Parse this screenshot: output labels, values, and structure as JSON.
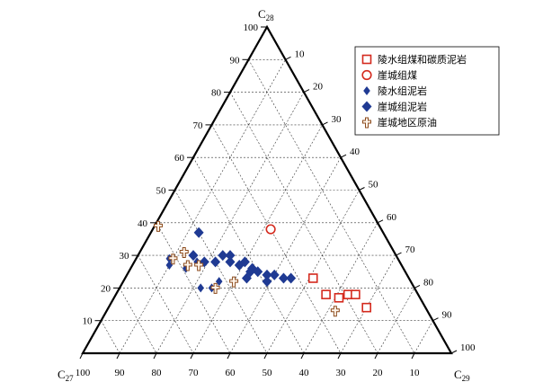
{
  "chart_data": {
    "type": "ternary",
    "corners": {
      "top": {
        "base": "C",
        "sub": "28"
      },
      "left": {
        "base": "C",
        "sub": "27"
      },
      "right": {
        "base": "C",
        "sub": "29"
      }
    },
    "ticks": {
      "c28": [
        10,
        20,
        30,
        40,
        50,
        60,
        70,
        80,
        90,
        100
      ],
      "c29": [
        10,
        20,
        30,
        40,
        50,
        60,
        70,
        80,
        90,
        100
      ],
      "c27": [
        100,
        90,
        80,
        70,
        60,
        50,
        40,
        30,
        20,
        10
      ]
    },
    "grid": true,
    "legend_position": "top-right",
    "series": [
      {
        "name": "陵水组煤和碳质泥岩",
        "marker": "square-open",
        "color": "#d42a1e",
        "points": [
          {
            "c27": 26,
            "c28": 23,
            "c29": 51
          },
          {
            "c27": 25,
            "c28": 18,
            "c29": 57
          },
          {
            "c27": 22,
            "c28": 17,
            "c29": 61
          },
          {
            "c27": 19,
            "c28": 18,
            "c29": 63
          },
          {
            "c27": 17,
            "c28": 18,
            "c29": 65
          },
          {
            "c27": 16,
            "c28": 14,
            "c29": 70
          }
        ]
      },
      {
        "name": "崖城组煤",
        "marker": "circle-open",
        "color": "#d42a1e",
        "points": [
          {
            "c27": 30,
            "c28": 38,
            "c29": 32
          }
        ]
      },
      {
        "name": "陵水组泥岩",
        "marker": "diamond-small",
        "color": "#1f3a93",
        "points": [
          {
            "c27": 63,
            "c28": 27,
            "c29": 10
          },
          {
            "c27": 62,
            "c28": 29,
            "c29": 9
          },
          {
            "c27": 59,
            "c28": 26,
            "c29": 15
          },
          {
            "c27": 58,
            "c28": 20,
            "c29": 22
          },
          {
            "c27": 55,
            "c28": 28,
            "c29": 17
          },
          {
            "c27": 55,
            "c28": 20,
            "c29": 25
          },
          {
            "c27": 52,
            "c28": 22,
            "c29": 26
          }
        ]
      },
      {
        "name": "崖城组泥岩",
        "marker": "diamond",
        "color": "#1f3a93",
        "points": [
          {
            "c27": 50,
            "c28": 37,
            "c29": 13
          },
          {
            "c27": 55,
            "c28": 30,
            "c29": 15
          },
          {
            "c27": 53,
            "c28": 28,
            "c29": 19
          },
          {
            "c27": 50,
            "c28": 28,
            "c29": 22
          },
          {
            "c27": 47,
            "c28": 30,
            "c29": 23
          },
          {
            "c27": 46,
            "c28": 28,
            "c29": 26
          },
          {
            "c27": 45,
            "c28": 30,
            "c29": 25
          },
          {
            "c27": 44,
            "c28": 27,
            "c29": 29
          },
          {
            "c27": 44,
            "c28": 23,
            "c29": 33
          },
          {
            "c27": 42,
            "c28": 28,
            "c29": 30
          },
          {
            "c27": 41,
            "c28": 26,
            "c29": 33
          },
          {
            "c27": 40,
            "c28": 25,
            "c29": 35
          },
          {
            "c27": 42,
            "c28": 25,
            "c29": 33
          },
          {
            "c27": 38,
            "c28": 24,
            "c29": 38
          },
          {
            "c27": 36,
            "c28": 24,
            "c29": 40
          },
          {
            "c27": 34,
            "c28": 23,
            "c29": 43
          },
          {
            "c27": 32,
            "c28": 23,
            "c29": 45
          },
          {
            "c27": 39,
            "c28": 22,
            "c29": 39
          }
        ]
      },
      {
        "name": "崖城地区原油",
        "marker": "cross",
        "color": "#8b4a1c",
        "points": [
          {
            "c27": 60,
            "c28": 39,
            "c29": 1
          },
          {
            "c27": 61,
            "c28": 29,
            "c29": 10
          },
          {
            "c27": 57,
            "c28": 31,
            "c29": 12
          },
          {
            "c27": 58,
            "c28": 27,
            "c29": 15
          },
          {
            "c27": 55,
            "c28": 27,
            "c29": 18
          },
          {
            "c27": 54,
            "c28": 20,
            "c29": 26
          },
          {
            "c27": 48,
            "c28": 22,
            "c29": 30
          },
          {
            "c27": 25,
            "c28": 13,
            "c29": 62
          }
        ]
      }
    ]
  }
}
